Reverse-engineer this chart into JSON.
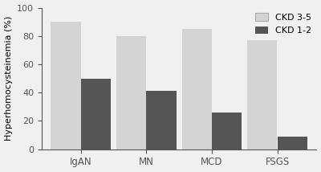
{
  "categories": [
    "IgAN",
    "MN",
    "MCD",
    "FSGS"
  ],
  "ckd35_values": [
    90,
    80,
    85,
    77
  ],
  "ckd12_values": [
    50,
    41,
    26,
    9
  ],
  "ckd35_color": "#d4d4d4",
  "ckd12_color": "#555555",
  "ylabel": "Hyperhomocysteinemia (%)",
  "ylim": [
    0,
    100
  ],
  "yticks": [
    0,
    20,
    40,
    60,
    80,
    100
  ],
  "legend_labels": [
    "CKD 3-5",
    "CKD 1-2"
  ],
  "bar_width": 0.32,
  "group_centers": [
    0.3,
    1.0,
    1.7,
    2.4
  ],
  "bg_color": "#f0f0f0"
}
